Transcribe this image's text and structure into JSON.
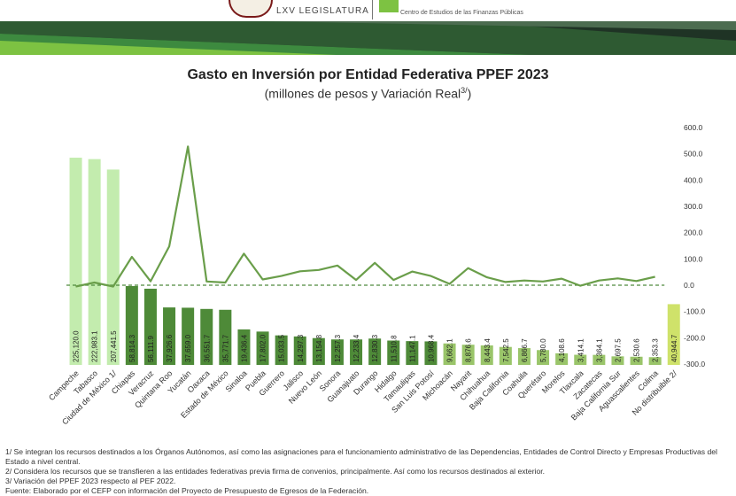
{
  "header": {
    "legislature": "LXV LEGISLATURA",
    "center": "Centro de Estudios de las Finanzas Públicas"
  },
  "chart_data": {
    "type": "bar",
    "title": "Gasto en Inversión por Entidad Federativa PPEF 2023",
    "subtitle": "(millones  de pesos y Variación Real",
    "subtitle_sup": "3/",
    "subtitle_end": ")",
    "categories": [
      "Campeche",
      "Tabasco",
      "Ciudad de México 1/",
      "Chiapas",
      "Veracruz",
      "Quintana Roo",
      "Yucatán",
      "Oaxaca",
      "Estado de México",
      "Sinaloa",
      "Puebla",
      "Guerrero",
      "Jalisco",
      "Nuevo León",
      "Sonora",
      "Guanajuato",
      "Durango",
      "Hidalgo",
      "Tamaulipas",
      "San Luis Potosí",
      "Michoacán",
      "Nayarit",
      "Chihuahua",
      "Baja California",
      "Coahuila",
      "Querétaro",
      "Morelos",
      "Tlaxcala",
      "Zacatecas",
      "Baja California Sur",
      "Aguascalientes",
      "Colima",
      "No distribuible 2/"
    ],
    "series": [
      {
        "type": "bar",
        "labels": [
          "225,120.0",
          "222,983.1",
          "207,441.5",
          "58,814.3",
          "56,111.9",
          "37,926.6",
          "37,659.0",
          "36,551.7",
          "35,771.7",
          "19,436.4",
          "17,802.0",
          "15,033.5",
          "14,297.3",
          "13,154.8",
          "12,257.3",
          "12,233.4",
          "12,830.3",
          "11,510.8",
          "11,147.1",
          "10,968.4",
          "9,662.1",
          "8,876.6",
          "8,443.4",
          "7,542.5",
          "6,866.7",
          "5,780.0",
          "4,108.6",
          "3,414.1",
          "3,364.1",
          "2,697.5",
          "2,530.6",
          "2,353.3",
          "40,944.7"
        ],
        "values": [
          225120.0,
          222983.1,
          207441.5,
          58814.3,
          56111.9,
          37926.6,
          37659.0,
          36551.7,
          35771.7,
          19436.4,
          17802.0,
          15033.5,
          14297.3,
          13154.8,
          12257.3,
          12233.4,
          12830.3,
          11510.8,
          11147.1,
          10968.4,
          9662.1,
          8876.6,
          8443.4,
          7542.5,
          6866.7,
          5780.0,
          4108.6,
          3414.1,
          3364.1,
          2697.5,
          2530.6,
          2353.3,
          40944.7
        ]
      },
      {
        "type": "line",
        "values": [
          -5,
          10,
          -5,
          108,
          15,
          148,
          528,
          14,
          10,
          120,
          22,
          35,
          53,
          58,
          75,
          20,
          85,
          20,
          52,
          35,
          5,
          65,
          30,
          12,
          18,
          14,
          25,
          -2,
          18,
          26,
          16,
          32,
          null
        ]
      }
    ],
    "y2_ticks": [
      "600.0",
      "500.0",
      "400.0",
      "300.0",
      "200.0",
      "100.0",
      "0.0",
      "-100.0",
      "-200.0",
      "-300.0"
    ],
    "y2lim": [
      -300,
      600
    ],
    "colors": {
      "light": "#c3ecae",
      "dark": "#4e8a38",
      "mid": "#9ac56a",
      "yellow": "#cfe26a",
      "line": "#6a9e4a"
    }
  },
  "notes": [
    "1/ Se integran los recursos destinados a los Órganos Autónomos, así como las asignaciones para el funcionamiento administrativo de las Dependencias, Entidades de Control Directo y Empresas Productivas del Estado a nivel central.",
    "2/  Considera los recursos que se transfieren a las entidades federativas previa firma de convenios, principalmente. Así como los recursos destinados al exterior.",
    "3/ Variación del PPEF 2023 respecto al PEF 2022.",
    "Fuente: Elaborado por el CEFP con información del Proyecto de Presupuesto de Egresos de la Federación."
  ]
}
